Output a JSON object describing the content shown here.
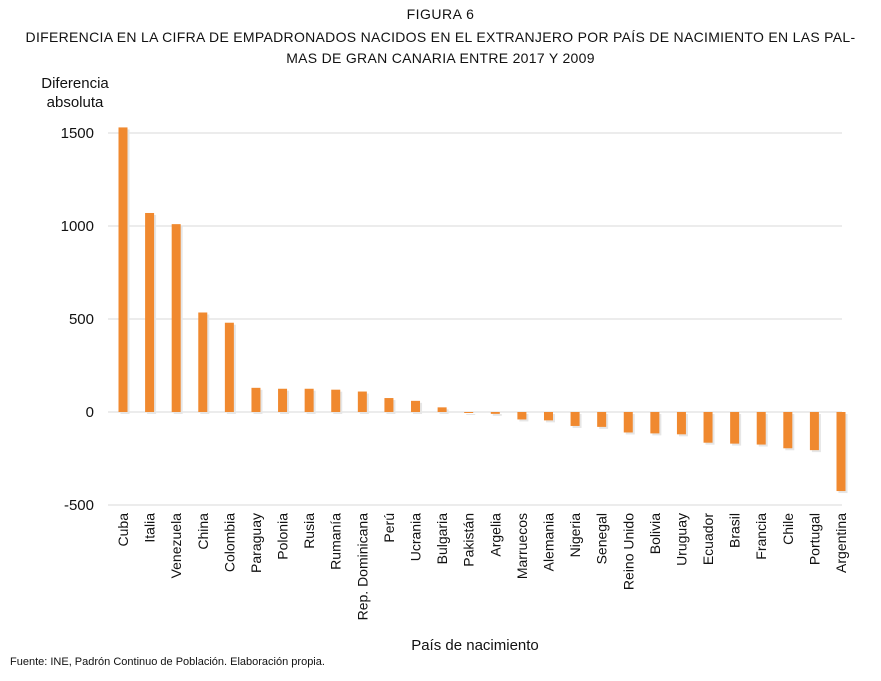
{
  "figure": {
    "label": "FIGURA 6",
    "title": "DIFERENCIA EN LA CIFRA DE EMPADRONADOS NACIDOS EN EL EXTRANJERO POR PAÍS DE NACIMIENTO EN LAS PAL- MAS DE GRAN CANARIA ENTRE 2017 Y 2009",
    "source": "Fuente: INE, Padrón Continuo de Población. Elaboración propia."
  },
  "chart_data": {
    "type": "bar",
    "title": "DIFERENCIA EN LA CIFRA DE EMPADRONADOS NACIDOS EN EL EXTRANJERO POR PAÍS DE NACIMIENTO EN LAS PAL- MAS DE GRAN CANARIA ENTRE 2017 Y 2009",
    "ylabel_lines": [
      "Diferencia",
      "absoluta"
    ],
    "xlabel": "País de nacimiento",
    "ylim": [
      -500,
      1500
    ],
    "yticks": [
      -500,
      0,
      500,
      1000,
      1500
    ],
    "grid": true,
    "bar_color": "#f0892f",
    "categories": [
      "Cuba",
      "Italia",
      "Venezuela",
      "China",
      "Colombia",
      "Paraguay",
      "Polonia",
      "Rusia",
      "Rumanía",
      "Rep. Dominicana",
      "Perú",
      "Ucrania",
      "Bulgaria",
      "Pakistán",
      "Argelia",
      "Marruecos",
      "Alemania",
      "Nigeria",
      "Senegal",
      "Reino Unido",
      "Bolivia",
      "Uruguay",
      "Ecuador",
      "Brasil",
      "Francia",
      "Chile",
      "Portugal",
      "Argentina"
    ],
    "values": [
      1530,
      1070,
      1010,
      535,
      480,
      130,
      125,
      125,
      120,
      110,
      75,
      60,
      25,
      -5,
      -10,
      -40,
      -45,
      -75,
      -80,
      -110,
      -115,
      -120,
      -165,
      -170,
      -175,
      -195,
      -205,
      -425
    ]
  }
}
